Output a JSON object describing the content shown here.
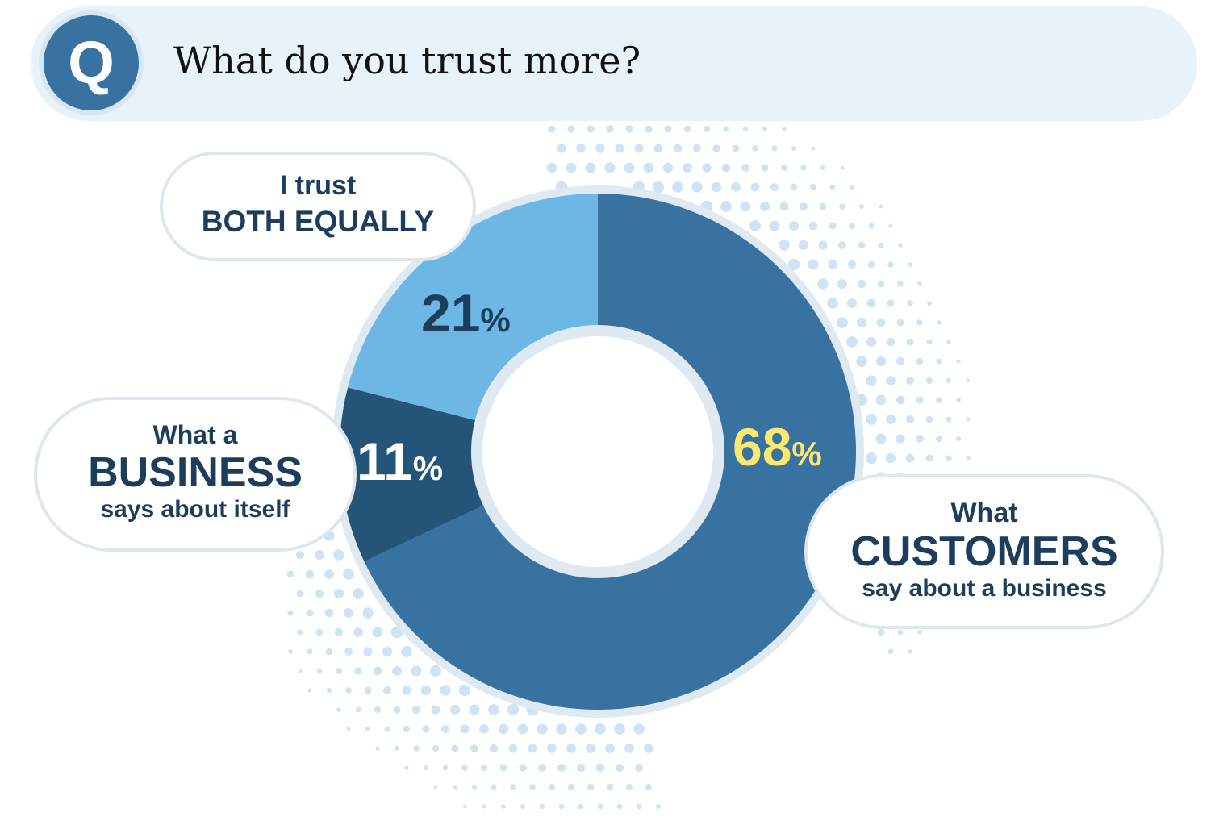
{
  "header": {
    "badge_letter": "Q",
    "question": "What do you trust more?"
  },
  "chart_data": {
    "type": "pie",
    "variant": "donut",
    "slices": [
      {
        "name": "What CUSTOMERS say about a business",
        "value": 68,
        "label": "68",
        "color": "#3872a0",
        "label_color": "#fbe96e"
      },
      {
        "name": "What a BUSINESS says about itself",
        "value": 11,
        "label": "11",
        "color": "#245578",
        "label_color": "#ffffff"
      },
      {
        "name": "I trust BOTH EQUALLY",
        "value": 21,
        "label": "21",
        "color": "#6cb7e3",
        "label_color": "#1c3d5c"
      }
    ],
    "percent_sign": "%"
  },
  "bubbles": {
    "both": {
      "line1": "I trust",
      "line2": "BOTH EQUALLY"
    },
    "business": {
      "line1": "What a",
      "line2": "BUSINESS",
      "line3": "says about itself"
    },
    "customers": {
      "line1": "What",
      "line2": "CUSTOMERS",
      "line3": "say about a business"
    }
  }
}
